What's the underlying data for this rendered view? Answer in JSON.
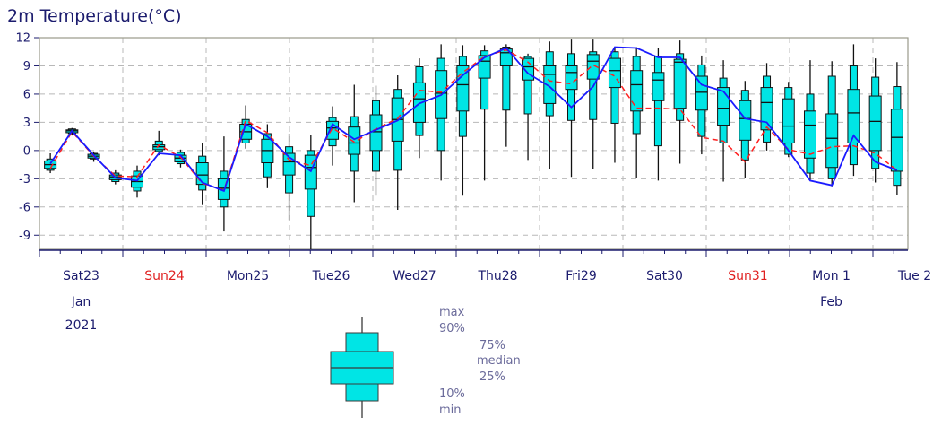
{
  "chart_data": {
    "type": "boxplot",
    "title": "2m Temperature(°C)",
    "ylim": [
      -10.5,
      12
    ],
    "yticks": [
      -9,
      -6,
      -3,
      0,
      3,
      6,
      9,
      12
    ],
    "grid": true,
    "x_day_labels": [
      {
        "label": "Sat23",
        "weekend": false
      },
      {
        "label": "Sun24",
        "weekend": true
      },
      {
        "label": "Mon25",
        "weekend": false
      },
      {
        "label": "Tue26",
        "weekend": false
      },
      {
        "label": "Wed27",
        "weekend": false
      },
      {
        "label": "Thu28",
        "weekend": false
      },
      {
        "label": "Fri29",
        "weekend": false
      },
      {
        "label": "Sat30",
        "weekend": false
      },
      {
        "label": "Sun31",
        "weekend": true
      },
      {
        "label": "Mon 1",
        "weekend": false
      },
      {
        "label": "Tue 2",
        "weekend": false
      }
    ],
    "x_sub_labels": [
      {
        "day_index": 0,
        "lines": [
          "Jan",
          "2021"
        ]
      },
      {
        "day_index": 9,
        "lines": [
          "Feb"
        ]
      }
    ],
    "boxes": [
      {
        "min": -2.4,
        "p10": -2.1,
        "p25": -1.9,
        "median": -1.5,
        "p75": -1.1,
        "p90": -0.9,
        "max": -0.3,
        "deterministic": -1.9,
        "control": -1.4
      },
      {
        "min": 1.6,
        "p10": 1.8,
        "p25": 1.9,
        "median": 2.1,
        "p75": 2.2,
        "p90": 2.3,
        "max": 2.4,
        "deterministic": 2.0,
        "control": 2.1
      },
      {
        "min": -1.2,
        "p10": -0.9,
        "p25": -0.8,
        "median": -0.6,
        "p75": -0.4,
        "p90": -0.3,
        "max": -0.1,
        "deterministic": -0.6,
        "control": -0.5
      },
      {
        "min": -3.6,
        "p10": -3.3,
        "p25": -3.1,
        "median": -2.8,
        "p75": -2.6,
        "p90": -2.4,
        "max": -2.1,
        "deterministic": -2.7,
        "control": -2.9
      },
      {
        "min": -5.0,
        "p10": -4.3,
        "p25": -3.9,
        "median": -3.3,
        "p75": -2.7,
        "p90": -2.2,
        "max": -1.6,
        "deterministic": -2.8,
        "control": -3.2
      },
      {
        "min": -0.5,
        "p10": -0.1,
        "p25": 0.1,
        "median": 0.4,
        "p75": 0.6,
        "p90": 1.0,
        "max": 2.1,
        "deterministic": 0.6,
        "control": -0.3
      },
      {
        "min": -1.8,
        "p10": -1.4,
        "p25": -1.2,
        "median": -0.8,
        "p75": -0.5,
        "p90": -0.2,
        "max": 0.1,
        "deterministic": -0.7,
        "control": -0.5
      },
      {
        "min": -5.8,
        "p10": -4.2,
        "p25": -3.6,
        "median": -2.6,
        "p75": -1.3,
        "p90": -0.6,
        "max": 0.8,
        "deterministic": -3.5,
        "control": -3.4
      },
      {
        "min": -8.6,
        "p10": -6.0,
        "p25": -5.2,
        "median": -4.0,
        "p75": -3.0,
        "p90": -2.2,
        "max": 1.5,
        "deterministic": -4.2,
        "control": -4.3
      },
      {
        "min": 0.2,
        "p10": 0.8,
        "p25": 1.2,
        "median": 2.0,
        "p75": 2.8,
        "p90": 3.3,
        "max": 4.8,
        "deterministic": 3.2,
        "control": 2.8
      },
      {
        "min": -4.0,
        "p10": -2.8,
        "p25": -1.3,
        "median": 0.0,
        "p75": 1.2,
        "p90": 1.8,
        "max": 2.8,
        "deterministic": 1.9,
        "control": 1.5
      },
      {
        "min": -7.4,
        "p10": -4.5,
        "p25": -2.6,
        "median": -1.2,
        "p75": -0.3,
        "p90": 0.4,
        "max": 1.8,
        "deterministic": -1.0,
        "control": -0.7
      },
      {
        "min": -10.5,
        "p10": -7.0,
        "p25": -4.1,
        "median": -1.8,
        "p75": -0.5,
        "p90": 0.0,
        "max": 1.7,
        "deterministic": -1.6,
        "control": -2.2
      },
      {
        "min": -1.6,
        "p10": 0.5,
        "p25": 1.2,
        "median": 2.4,
        "p75": 3.1,
        "p90": 3.5,
        "max": 4.7,
        "deterministic": 2.4,
        "control": 2.8
      },
      {
        "min": -5.5,
        "p10": -2.2,
        "p25": -0.4,
        "median": 0.8,
        "p75": 2.5,
        "p90": 3.6,
        "max": 7.0,
        "deterministic": 0.9,
        "control": 1.2
      },
      {
        "min": -4.8,
        "p10": -2.2,
        "p25": 0.0,
        "median": 2.0,
        "p75": 3.8,
        "p90": 5.3,
        "max": 6.9,
        "deterministic": 2.3,
        "control": 2.2
      },
      {
        "min": -6.3,
        "p10": -2.1,
        "p25": 1.0,
        "median": 3.3,
        "p75": 5.6,
        "p90": 6.5,
        "max": 8.0,
        "deterministic": 3.4,
        "control": 3.2
      },
      {
        "min": -0.8,
        "p10": 1.6,
        "p25": 3.0,
        "median": 5.5,
        "p75": 7.2,
        "p90": 8.9,
        "max": 9.8,
        "deterministic": 6.4,
        "control": 5.0
      },
      {
        "min": -3.2,
        "p10": 0.0,
        "p25": 3.4,
        "median": 6.1,
        "p75": 8.5,
        "p90": 9.8,
        "max": 11.3,
        "deterministic": 6.2,
        "control": 5.9
      },
      {
        "min": -4.8,
        "p10": 1.5,
        "p25": 4.2,
        "median": 7.0,
        "p75": 9.0,
        "p90": 10.0,
        "max": 11.2,
        "deterministic": 8.3,
        "control": 8.0
      },
      {
        "min": -3.2,
        "p10": 4.4,
        "p25": 7.7,
        "median": 9.5,
        "p75": 10.1,
        "p90": 10.6,
        "max": 11.2,
        "deterministic": 10.0,
        "control": 9.9
      },
      {
        "min": 0.4,
        "p10": 4.3,
        "p25": 9.0,
        "median": 10.4,
        "p75": 10.8,
        "p90": 11.0,
        "max": 11.3,
        "deterministic": 10.7,
        "control": 10.9
      },
      {
        "min": -1.0,
        "p10": 3.9,
        "p25": 7.5,
        "median": 8.9,
        "p75": 9.8,
        "p90": 10.0,
        "max": 10.3,
        "deterministic": 9.4,
        "control": 8.2
      },
      {
        "min": -2.0,
        "p10": 3.7,
        "p25": 5.0,
        "median": 8.1,
        "p75": 9.0,
        "p90": 10.5,
        "max": 11.6,
        "deterministic": 7.4,
        "control": 6.8
      },
      {
        "min": -2.8,
        "p10": 3.2,
        "p25": 6.5,
        "median": 8.3,
        "p75": 9.0,
        "p90": 10.3,
        "max": 11.8,
        "deterministic": 7.1,
        "control": 4.6
      },
      {
        "min": -2.0,
        "p10": 3.3,
        "p25": 7.6,
        "median": 9.5,
        "p75": 10.2,
        "p90": 10.5,
        "max": 11.8,
        "deterministic": 9.1,
        "control": 6.8
      },
      {
        "min": -1.3,
        "p10": 2.9,
        "p25": 6.7,
        "median": 8.5,
        "p75": 9.8,
        "p90": 10.5,
        "max": 11.0,
        "deterministic": 7.9,
        "control": 11.0
      },
      {
        "min": -2.9,
        "p10": 1.8,
        "p25": 4.2,
        "median": 7.0,
        "p75": 8.5,
        "p90": 10.0,
        "max": 11.0,
        "deterministic": 4.5,
        "control": 10.9
      },
      {
        "min": -3.2,
        "p10": 0.5,
        "p25": 5.3,
        "median": 7.5,
        "p75": 8.3,
        "p90": 10.0,
        "max": 10.9,
        "deterministic": 4.5,
        "control": 9.9
      },
      {
        "min": -1.4,
        "p10": 3.2,
        "p25": 4.5,
        "median": 9.4,
        "p75": 9.7,
        "p90": 10.3,
        "max": 11.7,
        "deterministic": 4.4,
        "control": 9.9
      },
      {
        "min": -0.4,
        "p10": 1.5,
        "p25": 4.3,
        "median": 6.2,
        "p75": 7.9,
        "p90": 9.1,
        "max": 10.1,
        "deterministic": 1.4,
        "control": 7.0
      },
      {
        "min": -3.3,
        "p10": 0.8,
        "p25": 2.7,
        "median": 4.5,
        "p75": 6.7,
        "p90": 7.7,
        "max": 9.6,
        "deterministic": 1.0,
        "control": 6.3
      },
      {
        "min": -2.9,
        "p10": -1.0,
        "p25": 1.1,
        "median": 3.4,
        "p75": 5.3,
        "p90": 6.4,
        "max": 7.4,
        "deterministic": -1.2,
        "control": 3.4
      },
      {
        "min": 0.0,
        "p10": 0.9,
        "p25": 2.2,
        "median": 5.1,
        "p75": 6.7,
        "p90": 7.9,
        "max": 9.3,
        "deterministic": 2.5,
        "control": 3.0
      },
      {
        "min": -0.7,
        "p10": -0.4,
        "p25": 0.8,
        "median": 2.6,
        "p75": 5.5,
        "p90": 6.7,
        "max": 7.3,
        "deterministic": 0.1,
        "control": 0.0
      },
      {
        "min": -3.2,
        "p10": -2.4,
        "p25": -0.8,
        "median": 2.7,
        "p75": 4.2,
        "p90": 6.0,
        "max": 9.6,
        "deterministic": -0.4,
        "control": -3.2
      },
      {
        "min": -3.8,
        "p10": -3.0,
        "p25": -1.8,
        "median": 1.3,
        "p75": 3.9,
        "p90": 7.9,
        "max": 9.5,
        "deterministic": 0.4,
        "control": -3.7
      },
      {
        "min": -2.7,
        "p10": -1.5,
        "p25": 0.8,
        "median": 4.0,
        "p75": 6.5,
        "p90": 9.0,
        "max": 11.3,
        "deterministic": 0.5,
        "control": 1.6
      },
      {
        "min": -3.4,
        "p10": -1.9,
        "p25": 0.0,
        "median": 3.1,
        "p75": 5.8,
        "p90": 7.8,
        "max": 9.8,
        "deterministic": -0.3,
        "control": -1.2
      },
      {
        "min": -4.7,
        "p10": -3.7,
        "p25": -2.2,
        "median": 1.4,
        "p75": 4.4,
        "p90": 6.8,
        "max": 9.4,
        "deterministic": -2.1,
        "control": -2.1
      }
    ],
    "legend_labels": {
      "max": "max",
      "p90": "90%",
      "p75": "75%",
      "median": "median",
      "p25": "25%",
      "p10": "10%",
      "min": "min"
    },
    "colors": {
      "box_fill": "#00e5e5",
      "box_stroke": "#111111",
      "control_line": "#1a1aff",
      "deterministic_line": "#ff2020",
      "grid": "#b8b8b8",
      "frame": "#9a9a8a",
      "axis": "#1c1c6e"
    }
  }
}
